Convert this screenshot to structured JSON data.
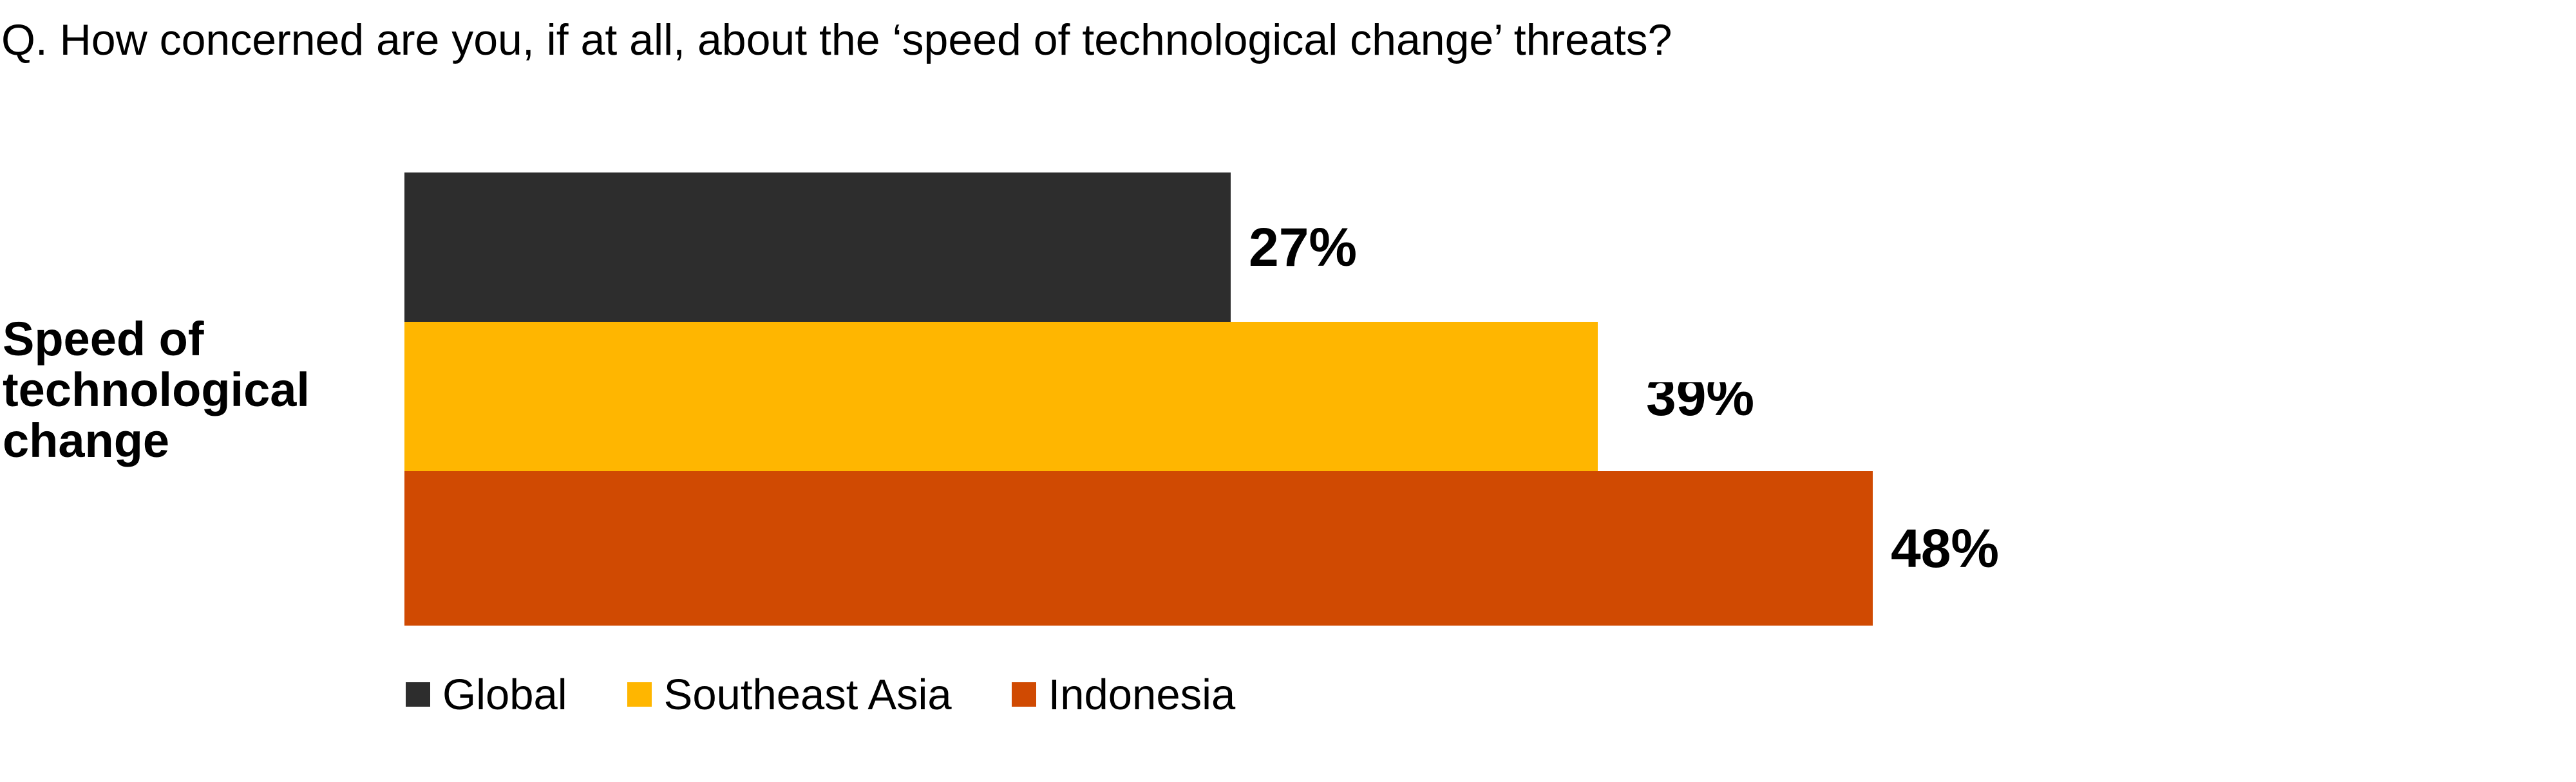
{
  "chart_data": {
    "type": "bar",
    "orientation": "horizontal",
    "title": "Q. How concerned are you, if at all, about the ‘speed of technological change’ threats?",
    "categories": [
      "Speed of\ntechnological\nchange"
    ],
    "value_unit": "%",
    "axes_visible": false,
    "grid": false,
    "legend_position": "bottom",
    "series": [
      {
        "name": "Global",
        "value": 27,
        "label": "27%",
        "color": "#2D2D2D"
      },
      {
        "name": "Southeast Asia",
        "value": 39,
        "label": "39%",
        "color": "#FFB600"
      },
      {
        "name": "Indonesia",
        "value": 48,
        "label": "48%",
        "color": "#D04A02"
      }
    ]
  },
  "page": {
    "background_color": "#FFFFFF",
    "text_color": "#000000"
  }
}
